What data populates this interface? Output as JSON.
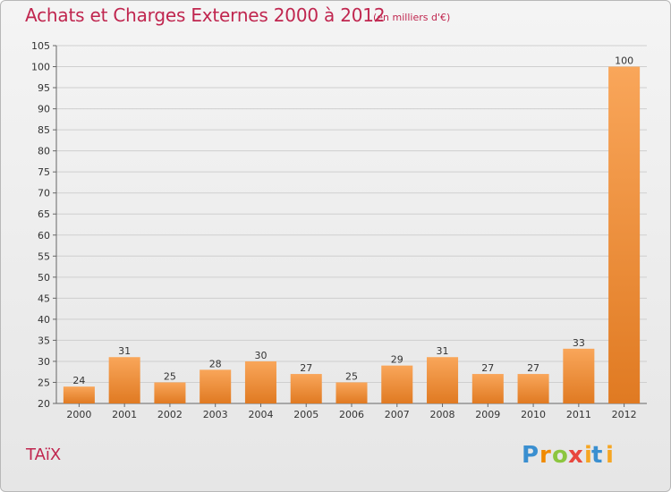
{
  "header": {
    "title": "Achats et Charges Externes 2000 à 2012",
    "subtitle": "(en milliers d'€)"
  },
  "footer": {
    "commune": "TAïX",
    "brand": {
      "p": "P",
      "r": "r",
      "o1": "o",
      "x": "x",
      "i1": "i",
      "t": "t",
      "i2": "i"
    }
  },
  "colors": {
    "title": "#c0264f",
    "bar_light": "#f9a65a",
    "bar_dark": "#e07a22",
    "grid": "#cfcfcf",
    "brand_p": "#3a8fd0",
    "brand_r": "#f08a00",
    "brand_o": "#8cc63f",
    "brand_x": "#e8473e",
    "brand_i": "#f6a623",
    "brand_t": "#3a8fd0"
  },
  "chart_data": {
    "type": "bar",
    "title": "Achats et Charges Externes 2000 à 2012",
    "subtitle": "(en milliers d'€)",
    "categories": [
      "2000",
      "2001",
      "2002",
      "2003",
      "2004",
      "2005",
      "2006",
      "2007",
      "2008",
      "2009",
      "2010",
      "2011",
      "2012"
    ],
    "values": [
      24,
      31,
      25,
      28,
      30,
      27,
      25,
      29,
      31,
      27,
      27,
      33,
      100
    ],
    "ylim": [
      20,
      105
    ],
    "yticks": [
      20,
      25,
      30,
      35,
      40,
      45,
      50,
      55,
      60,
      65,
      70,
      75,
      80,
      85,
      90,
      95,
      100,
      105
    ],
    "grid": true,
    "legend": "none"
  }
}
